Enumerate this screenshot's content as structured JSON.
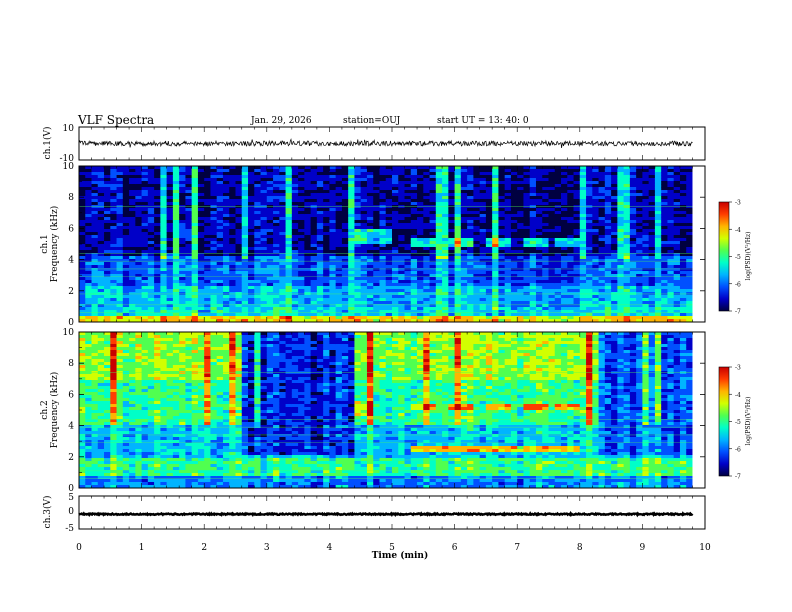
{
  "header": {
    "title": "VLF Spectra",
    "date": "Jan. 29, 2026",
    "station": "station=OUJ",
    "start": "start  UT  =   13: 40: 0"
  },
  "colors": {
    "colormap": [
      "#000040",
      "#0000c8",
      "#0050ff",
      "#00b4ff",
      "#00ffc8",
      "#50ff50",
      "#d2ff00",
      "#ffb400",
      "#ff3c00",
      "#c80000"
    ]
  },
  "chart_data": [
    {
      "type": "line",
      "name": "ch1-waveform",
      "ylabel": "ch.1(V)",
      "yticks": [
        "10",
        "-10"
      ],
      "ylim": [
        -10,
        10
      ],
      "xlim": [
        0,
        10
      ],
      "description_values": {
        "mean": 0,
        "amplitude_approx": 1.5
      }
    },
    {
      "type": "heatmap",
      "name": "ch1-spectrogram",
      "ylabel_channel": "ch.1",
      "ylabel": "Frequency (kHz)",
      "yticks": [
        "0",
        "2",
        "4",
        "6",
        "8",
        "10"
      ],
      "ylim": [
        0,
        10
      ],
      "xlim": [
        0,
        9.8
      ],
      "colorbar": {
        "label": "log(PSD)(V²/Hz)",
        "ticks": [
          "-3",
          "-4",
          "-5",
          "-6",
          "-7"
        ],
        "range": [
          -7,
          -3
        ]
      },
      "base_level": -6.5,
      "bands": [
        {
          "f0": 0.0,
          "f1": 0.4,
          "level": -4.2
        },
        {
          "f0": 0.4,
          "f1": 1.0,
          "level": -5.4
        },
        {
          "f0": 1.0,
          "f1": 2.4,
          "level": -5.6
        },
        {
          "f0": 2.4,
          "f1": 4.2,
          "level": -6.0
        },
        {
          "f0": 4.2,
          "f1": 10.0,
          "level": -6.5
        }
      ],
      "bursts": [
        {
          "t0": 4.45,
          "t1": 5.0,
          "f0": 5.0,
          "f1": 6.0,
          "level": -5.3
        },
        {
          "t0": 5.35,
          "t1": 5.75,
          "f0": 4.9,
          "f1": 5.4,
          "level": -5.2
        },
        {
          "t0": 5.95,
          "t1": 6.35,
          "f0": 4.9,
          "f1": 5.4,
          "level": -5.2
        },
        {
          "t0": 6.55,
          "t1": 6.95,
          "f0": 4.9,
          "f1": 5.4,
          "level": -5.2
        },
        {
          "t0": 7.15,
          "t1": 7.5,
          "f0": 4.9,
          "f1": 5.4,
          "level": -5.2
        },
        {
          "t0": 7.65,
          "t1": 8.0,
          "f0": 4.9,
          "f1": 5.4,
          "level": -5.2
        }
      ]
    },
    {
      "type": "heatmap",
      "name": "ch2-spectrogram",
      "ylabel_channel": "ch.2",
      "ylabel": "Frequency (kHz)",
      "yticks": [
        "0",
        "2",
        "4",
        "6",
        "8",
        "10"
      ],
      "ylim": [
        0,
        10
      ],
      "xlim": [
        0,
        9.8
      ],
      "colorbar": {
        "label": "log(PSD)(V²/Hz)",
        "ticks": [
          "-3",
          "-4",
          "-5",
          "-6",
          "-7"
        ],
        "range": [
          -7,
          -3
        ]
      },
      "base_level": -5.2,
      "bands": [
        {
          "f0": 0.0,
          "f1": 0.8,
          "level": -5.8
        },
        {
          "f0": 0.8,
          "f1": 2.0,
          "level": -5.0
        },
        {
          "f0": 2.0,
          "f1": 4.0,
          "level": -5.5
        },
        {
          "f0": 4.0,
          "f1": 7.0,
          "level": -5.0
        },
        {
          "f0": 7.0,
          "f1": 10.0,
          "level": -4.6
        }
      ],
      "quiet_segments": [
        {
          "t0": 2.6,
          "t1": 4.4,
          "level": -6.2
        },
        {
          "t0": 8.3,
          "t1": 9.8,
          "level": -6.0
        }
      ],
      "bursts": [
        {
          "t0": 4.45,
          "t1": 4.75,
          "f0": 4.6,
          "f1": 5.6,
          "level": -4.3
        },
        {
          "t0": 5.35,
          "t1": 5.75,
          "f0": 5.0,
          "f1": 5.4,
          "level": -3.9
        },
        {
          "t0": 5.95,
          "t1": 6.35,
          "f0": 5.0,
          "f1": 5.4,
          "level": -3.9
        },
        {
          "t0": 6.55,
          "t1": 6.95,
          "f0": 5.0,
          "f1": 5.4,
          "level": -3.9
        },
        {
          "t0": 7.15,
          "t1": 7.5,
          "f0": 5.0,
          "f1": 5.4,
          "level": -3.9
        },
        {
          "t0": 7.65,
          "t1": 8.0,
          "f0": 5.0,
          "f1": 5.4,
          "level": -3.9
        },
        {
          "t0": 5.35,
          "t1": 8.0,
          "f0": 2.3,
          "f1": 2.7,
          "level": -4.1
        }
      ]
    },
    {
      "type": "line",
      "name": "ch3-waveform",
      "ylabel": "ch.3(V)",
      "yticks": [
        "5",
        "0",
        "-5"
      ],
      "ylim": [
        -5,
        5
      ],
      "xlim": [
        0,
        10
      ],
      "description_values": {
        "mean": -0.5,
        "amplitude_approx": 0.2
      }
    }
  ],
  "xaxis": {
    "label": "Time  (min)",
    "ticks": [
      "0",
      "1",
      "2",
      "3",
      "4",
      "5",
      "6",
      "7",
      "8",
      "9",
      "10"
    ],
    "range": [
      0,
      10
    ]
  }
}
